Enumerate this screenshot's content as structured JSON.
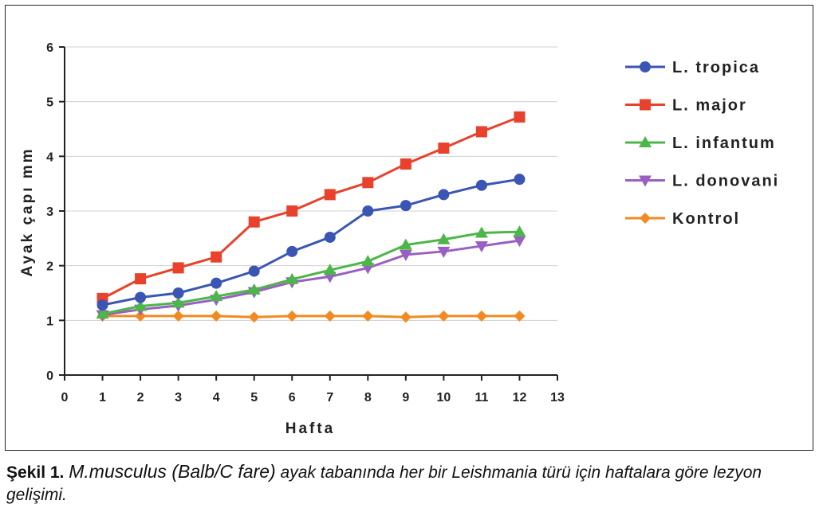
{
  "chart_data": {
    "type": "line",
    "xlabel": "Hafta",
    "ylabel": "Ayak çapı mm",
    "xlim": [
      0,
      13
    ],
    "ylim": [
      0,
      6
    ],
    "xticks": [
      "0",
      "1",
      "2",
      "3",
      "4",
      "5",
      "6",
      "7",
      "8",
      "9",
      "10",
      "11",
      "12",
      "13"
    ],
    "yticks": [
      "0",
      "1",
      "2",
      "3",
      "4",
      "5",
      "6"
    ],
    "grid": "horizontal",
    "legend_position": "right",
    "x": [
      1,
      2,
      3,
      4,
      5,
      6,
      7,
      8,
      9,
      10,
      11,
      12
    ],
    "series": [
      {
        "name": "L. tropica",
        "color": "#3a55b4",
        "marker": "circle",
        "values": [
          1.28,
          1.42,
          1.5,
          1.68,
          1.9,
          2.26,
          2.52,
          3.0,
          3.1,
          3.3,
          3.47,
          3.58
        ]
      },
      {
        "name": "L. major",
        "color": "#e8412c",
        "marker": "square",
        "values": [
          1.4,
          1.76,
          1.96,
          2.16,
          2.8,
          3.0,
          3.3,
          3.52,
          3.86,
          4.15,
          4.45,
          4.72
        ]
      },
      {
        "name": "L. infantum",
        "color": "#4cb648",
        "marker": "triangle-up",
        "values": [
          1.12,
          1.26,
          1.32,
          1.44,
          1.56,
          1.75,
          1.92,
          2.08,
          2.38,
          2.48,
          2.6,
          2.62
        ]
      },
      {
        "name": "L. donovani",
        "color": "#9a5fc2",
        "marker": "triangle-down",
        "values": [
          1.1,
          1.2,
          1.27,
          1.38,
          1.52,
          1.7,
          1.8,
          1.96,
          2.2,
          2.26,
          2.36,
          2.46
        ]
      },
      {
        "name": "Kontrol",
        "color": "#f28a22",
        "marker": "diamond",
        "values": [
          1.08,
          1.08,
          1.08,
          1.08,
          1.06,
          1.08,
          1.08,
          1.08,
          1.06,
          1.08,
          1.08,
          1.08
        ]
      }
    ]
  },
  "caption": {
    "label": "Şekil 1.",
    "species": "M.musculus (Balb/C fare)",
    "text": "ayak tabanında her bir Leishmania türü için haftalara göre lezyon gelişimi."
  }
}
